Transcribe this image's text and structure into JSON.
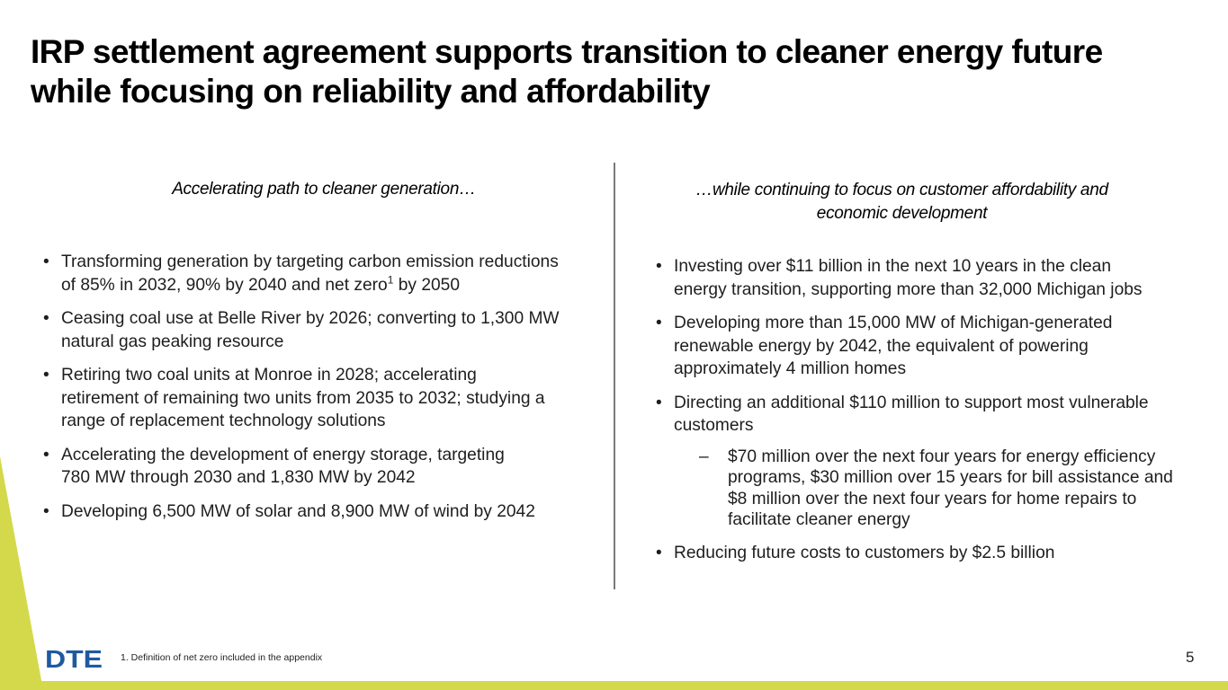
{
  "colors": {
    "accent_green": "#d4d94c",
    "text": "#1e1e1e",
    "logo_blue": "#1f5aa0"
  },
  "title": {
    "line1": "IRP settlement agreement supports transition to cleaner energy future",
    "line2": "while focusing on reliability and affordability"
  },
  "left": {
    "heading": "Accelerating path to cleaner generation…",
    "bullets": [
      {
        "line1": "Transforming generation by targeting carbon emission reductions",
        "line2a": "of 85% in 2032, 90% by 2040 and net zero",
        "sup": "1",
        "line2b": " by 2050"
      },
      {
        "line1": "Ceasing coal use at Belle River by 2026; converting to 1,300 MW",
        "line2": "natural gas peaking resource"
      },
      {
        "line1": "Retiring two coal units at Monroe in 2028; accelerating",
        "line2": "retirement of remaining two units from 2035 to 2032; studying a",
        "line3": "range of replacement technology solutions"
      },
      {
        "line1": "Accelerating the development of energy storage, targeting",
        "line2": "780 MW through 2030 and 1,830 MW by 2042"
      },
      {
        "line1": "Developing 6,500 MW of solar and 8,900 MW of wind by 2042"
      }
    ]
  },
  "right": {
    "heading_line1": "…while continuing to focus on customer affordability and",
    "heading_line2": "economic development",
    "bullets": [
      {
        "line1": "Investing over $11 billion in the next 10 years in the clean",
        "line2": "energy transition, supporting more than 32,000 Michigan jobs"
      },
      {
        "line1": "Developing more than 15,000 MW of Michigan-generated",
        "line2": "renewable energy by 2042, the equivalent of powering",
        "line3": "approximately 4 million homes"
      },
      {
        "line1": "Directing an additional $110 million to support most vulnerable",
        "line2": "customers",
        "sub": {
          "line1": "$70 million over the next four years for energy efficiency",
          "line2": "programs, $30 million over 15 years for bill assistance and",
          "line3": "$8 million over the next four years for home repairs to",
          "line4": "facilitate cleaner energy"
        }
      },
      {
        "line1": "Reducing future costs to customers by $2.5 billion"
      }
    ]
  },
  "footer": {
    "logo_text": "DTE",
    "footnote": "1.   Definition of net zero included in the appendix",
    "page_number": "5"
  },
  "icons": {
    "bullet": "•",
    "dash": "–"
  }
}
